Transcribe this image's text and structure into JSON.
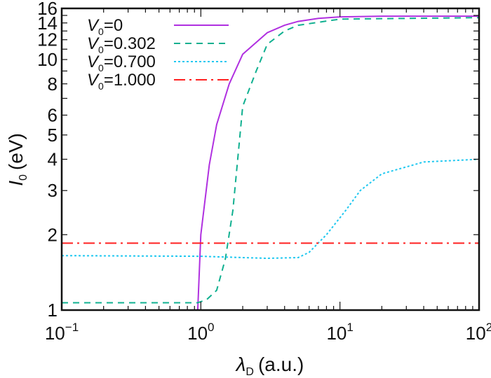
{
  "chart_data": {
    "type": "line",
    "title": "",
    "xlabel": "λD (a.u.)",
    "xlabel_main": "λ",
    "xlabel_sub": "D",
    "xlabel_unit": "(a.u.)",
    "ylabel_main": "I",
    "ylabel_sub": "0",
    "ylabel_unit": "(eV)",
    "xscale": "log",
    "yscale": "log",
    "xlim": [
      0.1,
      100
    ],
    "ylim": [
      1,
      16
    ],
    "x_ticks": [
      {
        "base": "10",
        "exp": "−1",
        "v": 0.1
      },
      {
        "base": "10",
        "exp": "0",
        "v": 1
      },
      {
        "base": "10",
        "exp": "1",
        "v": 10
      },
      {
        "base": "10",
        "exp": "2",
        "v": 100
      }
    ],
    "y_ticks": [
      "1",
      "2",
      "3",
      "4",
      "5",
      "6",
      "8",
      "10",
      "12",
      "14",
      "16"
    ],
    "legend_position": "top-left",
    "series": [
      {
        "name": "V0=0",
        "label_main": "V",
        "label_sub": "0",
        "label_rest": "=0",
        "color": "#b030e0",
        "dash": "",
        "x": [
          0.95,
          1.0,
          1.15,
          1.3,
          1.6,
          2,
          3,
          4,
          5,
          7,
          10,
          20,
          100
        ],
        "y": [
          1,
          2.0,
          3.8,
          5.5,
          8,
          10.5,
          12.8,
          13.7,
          14.2,
          14.6,
          14.8,
          14.9,
          14.9
        ]
      },
      {
        "name": "V0=0.302",
        "label_main": "V",
        "label_sub": "0",
        "label_rest": "=0.302",
        "color": "#10b090",
        "dash": "9,7",
        "x": [
          0.1,
          0.95,
          1.1,
          1.3,
          1.5,
          1.7,
          2,
          2.5,
          3,
          4,
          5,
          10,
          100
        ],
        "y": [
          1.07,
          1.07,
          1.1,
          1.2,
          1.6,
          2.5,
          6.5,
          9,
          11.5,
          13,
          13.7,
          14.5,
          14.7
        ]
      },
      {
        "name": "V0=0.700",
        "label_main": "V",
        "label_sub": "0",
        "label_rest": "=0.700",
        "color": "#20c8f0",
        "dash": "3,3",
        "x": [
          0.1,
          1,
          2,
          3,
          5,
          6,
          8,
          11,
          14,
          20,
          40,
          100
        ],
        "y": [
          1.65,
          1.64,
          1.62,
          1.61,
          1.62,
          1.7,
          2,
          2.5,
          3,
          3.5,
          3.9,
          4.0
        ]
      },
      {
        "name": "V0=1.000",
        "label_main": "V",
        "label_sub": "0",
        "label_rest": "=1.000",
        "color": "#ff2020",
        "dash": "16,6,3,6",
        "x": [
          0.1,
          100
        ],
        "y": [
          1.85,
          1.85
        ]
      }
    ]
  }
}
